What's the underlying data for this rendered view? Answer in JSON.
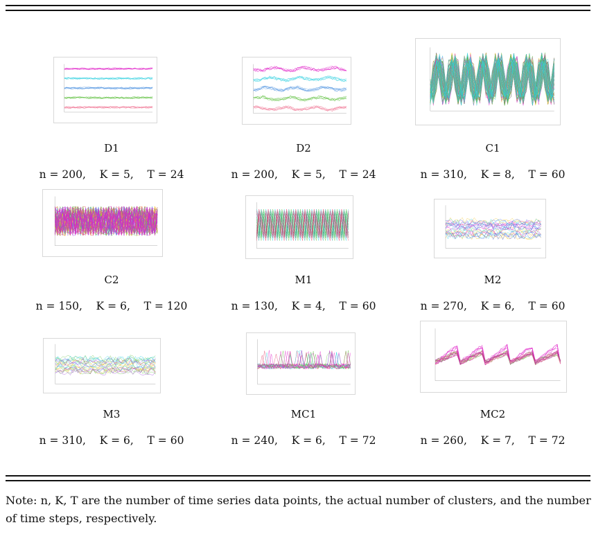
{
  "figure": {
    "datasets": [
      {
        "name": "D1",
        "params": "n = 200,    K = 5,    T = 24",
        "series_colors": [
          "#e020c8",
          "#30d0e0",
          "#4a90e0",
          "#60c040",
          "#f07090"
        ],
        "style": "flat-bands"
      },
      {
        "name": "D2",
        "params": "n = 200,    K = 5,    T = 24",
        "series_colors": [
          "#e020c8",
          "#30d0e0",
          "#4a90e0",
          "#60c040",
          "#f07090"
        ],
        "style": "wavy-bands"
      },
      {
        "name": "C1",
        "params": "n = 310,    K = 8,    T = 60",
        "series_colors": [
          "#111111",
          "#f0c020",
          "#e020c8",
          "#60c040",
          "#30d0e0"
        ],
        "style": "dense-oscillation"
      },
      {
        "name": "C2",
        "params": "n = 150,    K = 6,    T = 120",
        "series_colors": [
          "#e03030",
          "#30a0e0",
          "#60c040",
          "#f0c020",
          "#a040e0",
          "#e020c8"
        ],
        "style": "dense-noise"
      },
      {
        "name": "M1",
        "params": "n = 130,    K = 4,    T = 60",
        "series_colors": [
          "#30d0e0",
          "#60c040",
          "#30a0a0",
          "#e03060"
        ],
        "style": "sawtooth"
      },
      {
        "name": "M2",
        "params": "n = 270,    K = 6,    T = 60",
        "series_colors": [
          "#f0c020",
          "#e020c8",
          "#30d0e0",
          "#4060e0"
        ],
        "style": "mixed-levels"
      },
      {
        "name": "M3",
        "params": "n = 310,    K = 6,    T = 60",
        "series_colors": [
          "#60c040",
          "#f0c020",
          "#30d0e0",
          "#a040e0"
        ],
        "style": "mixed-levels-2"
      },
      {
        "name": "MC1",
        "params": "n = 240,    K = 6,    T = 72",
        "series_colors": [
          "#e03060",
          "#30d0e0",
          "#60c040",
          "#e020c8"
        ],
        "style": "flat-spiky"
      },
      {
        "name": "MC2",
        "params": "n = 260,    K = 7,    T = 72",
        "series_colors": [
          "#e020c8",
          "#60c040",
          "#f07090",
          "#c020a0"
        ],
        "style": "pulses"
      }
    ]
  },
  "note": "Note: n, K, T are the number of time series data points, the actual number of clusters, and the number of time steps, respectively."
}
